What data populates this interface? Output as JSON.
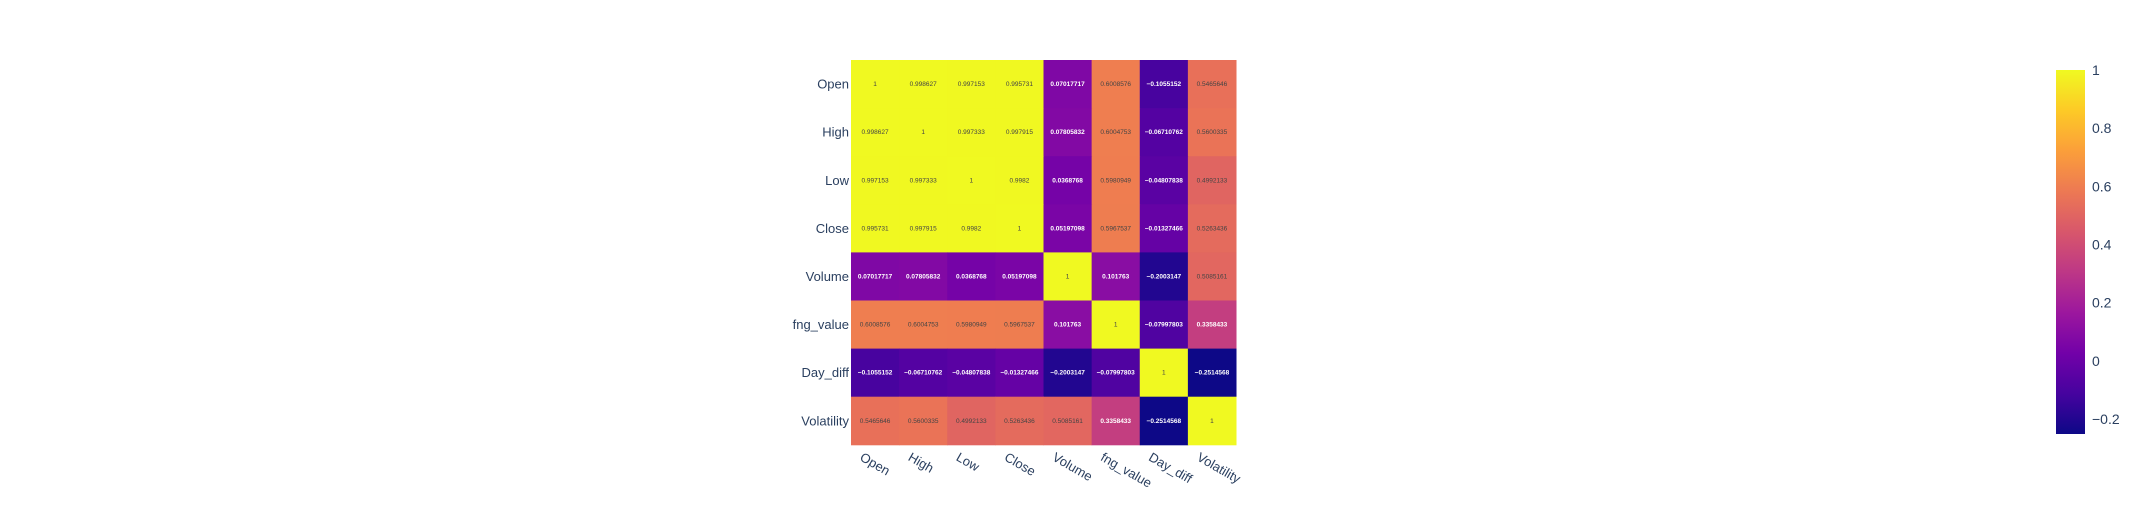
{
  "chart_data": {
    "type": "heatmap",
    "title": "",
    "xlabel": "",
    "ylabel": "",
    "x_categories": [
      "Open",
      "High",
      "Low",
      "Close",
      "Volume",
      "fng_value",
      "Day_diff",
      "Volatility"
    ],
    "y_categories": [
      "Open",
      "High",
      "Low",
      "Close",
      "Volume",
      "fng_value",
      "Day_diff",
      "Volatility"
    ],
    "values": [
      [
        1,
        0.998627,
        0.997153,
        0.995731,
        0.07017717,
        0.6008576,
        -0.1055152,
        0.5465646
      ],
      [
        0.998627,
        1,
        0.997333,
        0.997915,
        0.07805832,
        0.6004753,
        -0.06710762,
        0.5600335
      ],
      [
        0.997153,
        0.997333,
        1,
        0.9982,
        0.0368768,
        0.5980949,
        -0.04807838,
        0.4992133
      ],
      [
        0.995731,
        0.997915,
        0.9982,
        1,
        0.05197098,
        0.5967537,
        -0.01327466,
        0.5263436
      ],
      [
        0.07017717,
        0.07805832,
        0.0368768,
        0.05197098,
        1,
        0.101763,
        -0.2003147,
        0.5085161
      ],
      [
        0.6008576,
        0.6004753,
        0.5980949,
        0.5967537,
        0.101763,
        1,
        -0.07997803,
        0.3358433
      ],
      [
        -0.1055152,
        -0.06710762,
        -0.04807838,
        -0.01327466,
        -0.2003147,
        -0.07997803,
        1,
        -0.2514568
      ],
      [
        0.5465646,
        0.5600335,
        0.4992133,
        0.5263436,
        0.5085161,
        0.3358433,
        -0.2514568,
        1
      ]
    ],
    "cell_text": [
      [
        "1",
        "0.998627",
        "0.997153",
        "0.995731",
        "0.07017717",
        "0.6008576",
        "−0.1055152",
        "0.5465646"
      ],
      [
        "0.998627",
        "1",
        "0.997333",
        "0.997915",
        "0.07805832",
        "0.6004753",
        "−0.06710762",
        "0.5600335"
      ],
      [
        "0.997153",
        "0.997333",
        "1",
        "0.9982",
        "0.0368768",
        "0.5980949",
        "−0.04807838",
        "0.4992133"
      ],
      [
        "0.995731",
        "0.997915",
        "0.9982",
        "1",
        "0.05197098",
        "0.5967537",
        "−0.01327466",
        "0.5263436"
      ],
      [
        "0.07017717",
        "0.07805832",
        "0.0368768",
        "0.05197098",
        "1",
        "0.101763",
        "−0.2003147",
        "0.5085161"
      ],
      [
        "0.6008576",
        "0.6004753",
        "0.5980949",
        "0.5967537",
        "0.101763",
        "1",
        "−0.07997803",
        "0.3358433"
      ],
      [
        "−0.1055152",
        "−0.06710762",
        "−0.04807838",
        "−0.01327466",
        "−0.2003147",
        "−0.07997803",
        "1",
        "−0.2514568"
      ],
      [
        "0.5465646",
        "0.5600335",
        "0.4992133",
        "0.5263436",
        "0.5085161",
        "0.3358433",
        "−0.2514568",
        "1"
      ]
    ],
    "zmin": -0.2514568,
    "zmax": 1,
    "colorscale": [
      "#0d0887",
      "#46039f",
      "#7201a8",
      "#9c179e",
      "#bd3786",
      "#d8576b",
      "#ed7953",
      "#fb9f3a",
      "#fdca26",
      "#f0f921"
    ],
    "colorbar": {
      "ticks": [
        -0.2,
        0,
        0.2,
        0.4,
        0.6,
        0.8,
        1
      ],
      "tick_labels": [
        "−0.2",
        "0",
        "0.2",
        "0.4",
        "0.6",
        "0.8",
        "1"
      ]
    }
  }
}
